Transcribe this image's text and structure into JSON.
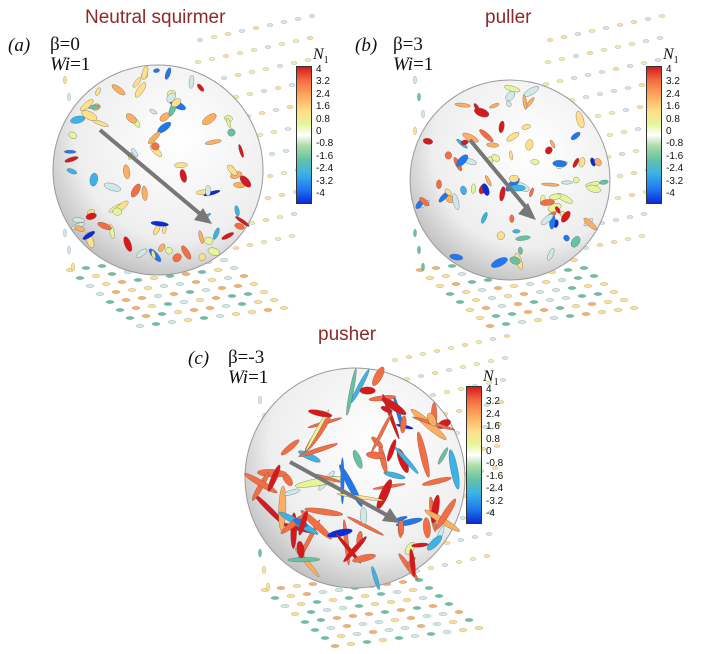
{
  "panels": [
    {
      "title": "Neutral squirmer",
      "label": "(a)",
      "beta_text": "β=0",
      "wi_label": "Wi",
      "wi_value": "=1"
    },
    {
      "title": "puller",
      "label": "(b)",
      "beta_text": "β=3",
      "wi_label": "Wi",
      "wi_value": "=1"
    },
    {
      "title": "pusher",
      "label": "(c)",
      "beta_text": "β=-3",
      "wi_label": "Wi",
      "wi_value": "=1"
    }
  ],
  "colorbar": {
    "title": "N",
    "subscript": "1",
    "ticks": [
      "4",
      "3.2",
      "2.4",
      "1.6",
      "0.8",
      "0",
      "-0.8",
      "-1.6",
      "-2.4",
      "-3.2",
      "-4"
    ]
  }
}
